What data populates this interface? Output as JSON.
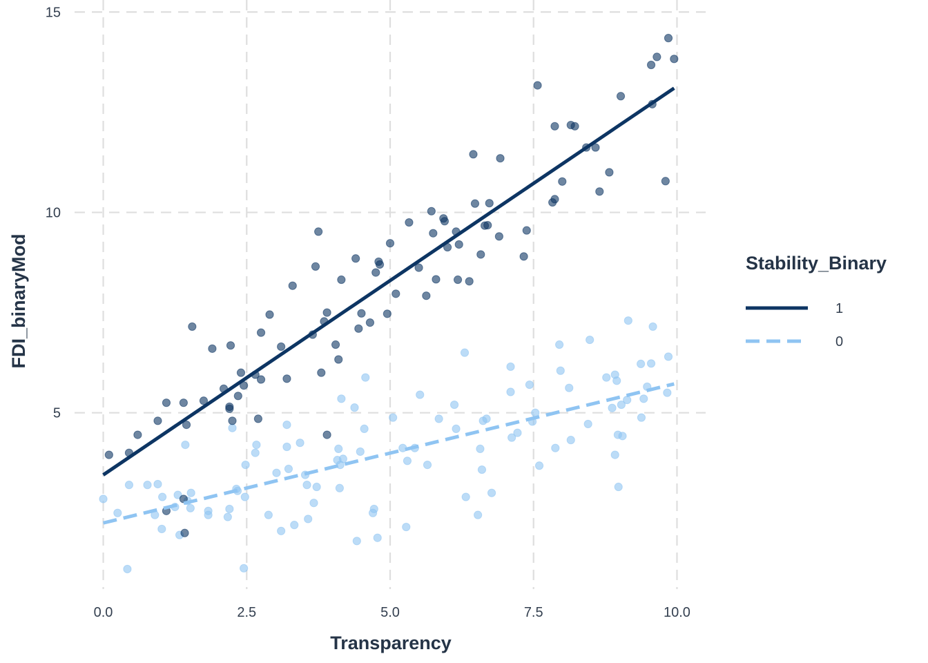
{
  "chart_data": {
    "type": "scatter",
    "title": "",
    "xlabel": "Transparency",
    "ylabel": "FDI_binaryMod",
    "xlim": [
      -0.5,
      10.5
    ],
    "ylim": [
      0.6,
      15.3
    ],
    "x_ticks": [
      0,
      2.5,
      5,
      7.5,
      10
    ],
    "x_tick_labels": [
      "0.0",
      "2.5",
      "5.0",
      "7.5",
      "10.0"
    ],
    "y_ticks": [
      5,
      10,
      15
    ],
    "y_tick_labels": [
      "5",
      "10",
      "15"
    ],
    "grid": true,
    "grid_style": "dashed",
    "legend": {
      "title": "Stability_Binary",
      "position": "right",
      "entries": [
        {
          "label": "1",
          "color": "#0d3563",
          "line_style": "solid"
        },
        {
          "label": "0",
          "color": "#8fc4f2",
          "line_style": "dashed"
        }
      ]
    },
    "series": [
      {
        "name": "1",
        "color": "#0d3563",
        "point_opacity": 0.6,
        "fit_line": {
          "x": [
            0,
            9.95
          ],
          "y": [
            3.45,
            13.1
          ],
          "style": "solid"
        },
        "x": [
          0.1,
          0.45,
          0.6,
          0.95,
          1.1,
          1.4,
          1.45,
          1.55,
          1.75,
          1.9,
          2.1,
          2.2,
          2.2,
          2.22,
          2.25,
          2.35,
          2.4,
          2.45,
          2.65,
          2.7,
          2.75,
          2.75,
          2.9,
          3.1,
          3.2,
          3.3,
          3.65,
          3.7,
          3.75,
          3.8,
          3.85,
          3.9,
          4.05,
          4.1,
          4.15,
          4.4,
          4.45,
          4.5,
          4.65,
          4.75,
          4.8,
          4.82,
          4.95,
          5.0,
          5.1,
          5.33,
          5.5,
          5.63,
          5.72,
          5.75,
          5.8,
          5.93,
          5.95,
          6.0,
          6.15,
          6.18,
          6.2,
          6.38,
          6.45,
          6.48,
          6.58,
          6.65,
          6.7,
          6.73,
          6.9,
          6.92,
          7.33,
          7.38,
          7.57,
          7.83,
          7.87,
          7.87,
          8.0,
          8.15,
          8.22,
          8.42,
          8.58,
          8.65,
          8.82,
          9.02,
          9.55,
          9.57,
          9.65,
          9.8,
          9.85,
          9.95,
          1.1,
          1.4,
          1.42,
          3.9
        ],
        "y": [
          3.95,
          4.0,
          4.45,
          4.8,
          5.25,
          5.25,
          4.7,
          7.15,
          5.3,
          6.6,
          5.6,
          5.15,
          5.1,
          6.68,
          4.8,
          5.42,
          6.0,
          5.68,
          5.95,
          4.85,
          7.0,
          5.83,
          7.45,
          6.65,
          5.85,
          8.17,
          6.95,
          8.65,
          9.52,
          6.0,
          7.28,
          7.5,
          6.7,
          6.33,
          8.32,
          8.85,
          7.1,
          7.48,
          7.25,
          8.5,
          8.77,
          8.7,
          7.47,
          9.23,
          7.97,
          9.75,
          8.62,
          7.92,
          10.03,
          9.48,
          8.33,
          9.85,
          9.78,
          9.13,
          9.52,
          8.32,
          9.2,
          8.28,
          11.45,
          10.22,
          8.95,
          9.67,
          9.68,
          10.23,
          9.4,
          11.35,
          8.9,
          9.55,
          13.17,
          10.25,
          12.15,
          10.33,
          10.77,
          12.18,
          12.15,
          11.62,
          11.62,
          10.52,
          11.0,
          12.9,
          13.68,
          12.7,
          13.88,
          10.78,
          14.35,
          13.83,
          2.55,
          2.85,
          2.0,
          4.45
        ]
      },
      {
        "name": "0",
        "color": "#8fc4f2",
        "point_opacity": 0.6,
        "fit_line": {
          "x": [
            0,
            9.95
          ],
          "y": [
            2.25,
            5.72
          ],
          "style": "dashed"
        },
        "x": [
          0,
          0.25,
          0.42,
          0.45,
          0.77,
          0.9,
          0.95,
          1.02,
          1.03,
          1.25,
          1.3,
          1.33,
          1.43,
          1.47,
          1.52,
          1.53,
          1.83,
          1.83,
          2.17,
          2.2,
          2.25,
          2.32,
          2.34,
          2.45,
          2.47,
          2.48,
          2.65,
          2.67,
          2.88,
          3.02,
          3.1,
          3.2,
          3.2,
          3.23,
          3.33,
          3.43,
          3.52,
          3.55,
          3.57,
          3.67,
          3.72,
          4.08,
          4.1,
          4.12,
          4.13,
          4.15,
          4.18,
          4.38,
          4.42,
          4.48,
          4.55,
          4.57,
          4.7,
          4.72,
          4.78,
          5.05,
          5.22,
          5.28,
          5.3,
          5.43,
          5.52,
          5.65,
          5.85,
          6.12,
          6.15,
          6.3,
          6.32,
          6.53,
          6.57,
          6.6,
          6.62,
          6.68,
          6.77,
          7.1,
          7.1,
          7.12,
          7.22,
          7.43,
          7.48,
          7.53,
          7.6,
          7.88,
          7.95,
          7.97,
          8.12,
          8.15,
          8.45,
          8.48,
          8.77,
          8.87,
          8.92,
          8.92,
          8.95,
          8.97,
          8.98,
          9.03,
          9.05,
          9.13,
          9.15,
          9.37,
          9.38,
          9.42,
          9.48,
          9.55,
          9.58,
          9.83,
          9.85
        ],
        "y": [
          2.85,
          2.5,
          1.1,
          3.2,
          3.2,
          2.45,
          3.22,
          2.1,
          2.9,
          2.65,
          2.95,
          1.95,
          4.2,
          2.8,
          2.62,
          3.0,
          2.55,
          2.45,
          2.4,
          2.6,
          4.62,
          3.1,
          3.05,
          1.12,
          2.9,
          3.7,
          4.0,
          4.2,
          2.45,
          3.5,
          2.05,
          4.15,
          4.7,
          3.6,
          2.2,
          4.25,
          3.45,
          3.2,
          2.35,
          2.75,
          3.15,
          3.82,
          4.1,
          3.12,
          3.7,
          5.35,
          3.85,
          5.13,
          1.8,
          4.03,
          4.6,
          5.88,
          2.5,
          2.6,
          1.88,
          4.88,
          4.12,
          2.15,
          3.8,
          4.12,
          5.45,
          3.7,
          4.85,
          5.2,
          4.6,
          6.5,
          2.9,
          2.45,
          4.1,
          3.58,
          4.8,
          4.85,
          3.0,
          6.15,
          5.52,
          4.38,
          4.5,
          5.7,
          4.78,
          5.0,
          3.68,
          4.12,
          6.7,
          6.05,
          5.62,
          4.32,
          4.72,
          6.82,
          5.88,
          5.12,
          3.95,
          5.95,
          5.8,
          4.45,
          3.15,
          5.2,
          4.42,
          5.32,
          7.3,
          6.22,
          4.88,
          5.35,
          5.65,
          6.23,
          7.15,
          5.5,
          6.4
        ]
      }
    ]
  }
}
